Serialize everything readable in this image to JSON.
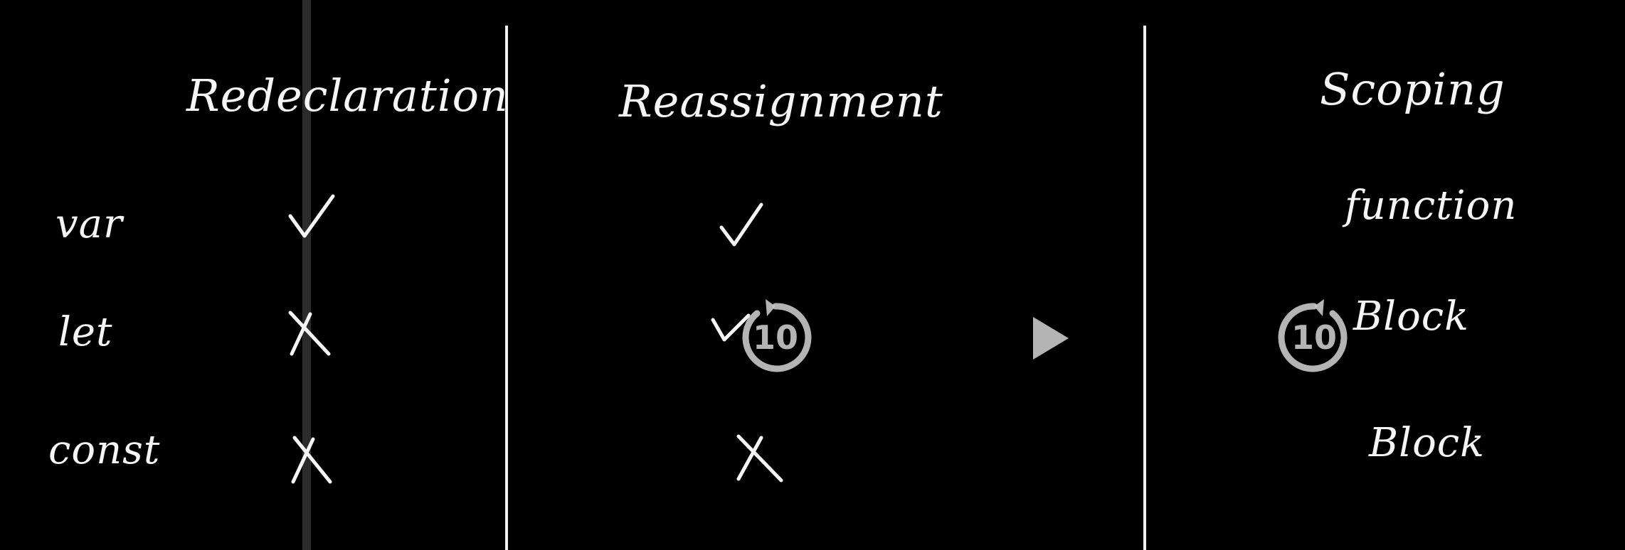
{
  "table": {
    "columns": [
      {
        "header": "Redeclaration"
      },
      {
        "header": "Reassignment"
      },
      {
        "header": "Scoping"
      }
    ],
    "rows": [
      {
        "label": "var",
        "redeclaration": "check",
        "reassignment": "check",
        "scoping": "function"
      },
      {
        "label": "let",
        "redeclaration": "cross",
        "reassignment": "check",
        "scoping": "Block"
      },
      {
        "label": "const",
        "redeclaration": "cross",
        "reassignment": "cross",
        "scoping": "Block"
      }
    ]
  },
  "player": {
    "rewind_seconds": "10",
    "forward_seconds": "10",
    "rewind_icon": "rewind-10-icon",
    "play_icon": "play-icon",
    "forward_icon": "forward-10-icon"
  },
  "colors": {
    "background": "#000000",
    "ink": "#f5f5f5",
    "controls": "#c8c8c8"
  }
}
